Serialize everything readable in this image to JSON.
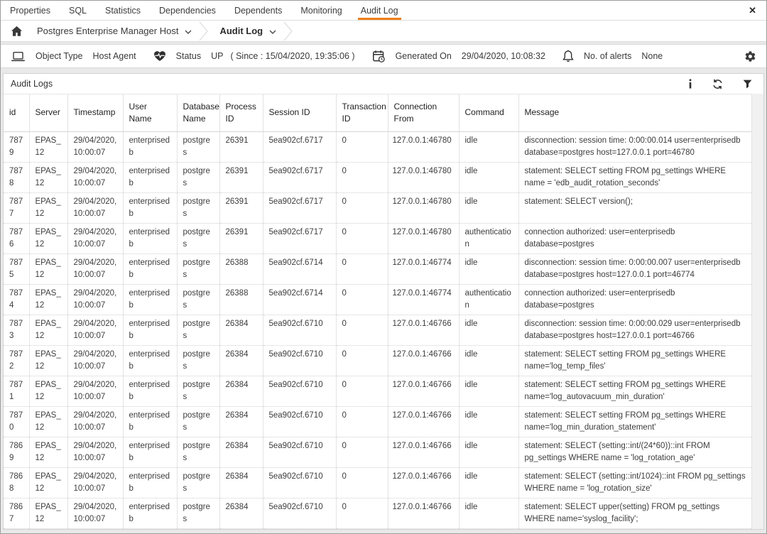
{
  "colors": {
    "accent_orange": "#ef7d1a"
  },
  "tabs": {
    "items": [
      {
        "label": "Properties",
        "active": false
      },
      {
        "label": "SQL",
        "active": false
      },
      {
        "label": "Statistics",
        "active": false
      },
      {
        "label": "Dependencies",
        "active": false
      },
      {
        "label": "Dependents",
        "active": false
      },
      {
        "label": "Monitoring",
        "active": false
      },
      {
        "label": "Audit Log",
        "active": true
      }
    ],
    "close_label": "✕"
  },
  "breadcrumb": {
    "items": [
      {
        "label": "Postgres Enterprise Manager Host"
      },
      {
        "label": "Audit Log"
      }
    ]
  },
  "status_bar": {
    "object_type_label": "Object Type",
    "object_type_value": "Host Agent",
    "status_label": "Status",
    "status_value": "UP",
    "status_since": "( Since : 15/04/2020, 19:35:06 )",
    "generated_label": "Generated On",
    "generated_value": "29/04/2020, 10:08:32",
    "alerts_label": "No. of alerts",
    "alerts_value": "None"
  },
  "panel": {
    "title": "Audit Logs"
  },
  "table": {
    "columns": [
      {
        "key": "id",
        "label": "id"
      },
      {
        "key": "server",
        "label": "Server"
      },
      {
        "key": "timestamp",
        "label": "Timestamp"
      },
      {
        "key": "user_name",
        "label": "User Name"
      },
      {
        "key": "database_name",
        "label": "Database Name"
      },
      {
        "key": "process_id",
        "label": "Process ID"
      },
      {
        "key": "session_id",
        "label": "Session ID"
      },
      {
        "key": "transaction_id",
        "label": "Transaction ID"
      },
      {
        "key": "connection_from",
        "label": "Connection From"
      },
      {
        "key": "command",
        "label": "Command"
      },
      {
        "key": "message",
        "label": "Message"
      }
    ],
    "rows": [
      {
        "id": "7879",
        "server": "EPAS_12",
        "timestamp": "29/04/2020, 10:00:07",
        "user_name": "enterprisedb",
        "database_name": "postgres",
        "process_id": "26391",
        "session_id": "5ea902cf.6717",
        "transaction_id": "0",
        "connection_from": "127.0.0.1:46780",
        "command": "idle",
        "message": "disconnection: session time: 0:00:00.014 user=enterprisedb database=postgres host=127.0.0.1 port=46780"
      },
      {
        "id": "7878",
        "server": "EPAS_12",
        "timestamp": "29/04/2020, 10:00:07",
        "user_name": "enterprisedb",
        "database_name": "postgres",
        "process_id": "26391",
        "session_id": "5ea902cf.6717",
        "transaction_id": "0",
        "connection_from": "127.0.0.1:46780",
        "command": "idle",
        "message": "statement: SELECT setting FROM pg_settings WHERE name = 'edb_audit_rotation_seconds'"
      },
      {
        "id": "7877",
        "server": "EPAS_12",
        "timestamp": "29/04/2020, 10:00:07",
        "user_name": "enterprisedb",
        "database_name": "postgres",
        "process_id": "26391",
        "session_id": "5ea902cf.6717",
        "transaction_id": "0",
        "connection_from": "127.0.0.1:46780",
        "command": "idle",
        "message": "statement: SELECT version();"
      },
      {
        "id": "7876",
        "server": "EPAS_12",
        "timestamp": "29/04/2020, 10:00:07",
        "user_name": "enterprisedb",
        "database_name": "postgres",
        "process_id": "26391",
        "session_id": "5ea902cf.6717",
        "transaction_id": "0",
        "connection_from": "127.0.0.1:46780",
        "command": "authentication",
        "message": "connection authorized: user=enterprisedb database=postgres"
      },
      {
        "id": "7875",
        "server": "EPAS_12",
        "timestamp": "29/04/2020, 10:00:07",
        "user_name": "enterprisedb",
        "database_name": "postgres",
        "process_id": "26388",
        "session_id": "5ea902cf.6714",
        "transaction_id": "0",
        "connection_from": "127.0.0.1:46774",
        "command": "idle",
        "message": "disconnection: session time: 0:00:00.007 user=enterprisedb database=postgres host=127.0.0.1 port=46774"
      },
      {
        "id": "7874",
        "server": "EPAS_12",
        "timestamp": "29/04/2020, 10:00:07",
        "user_name": "enterprisedb",
        "database_name": "postgres",
        "process_id": "26388",
        "session_id": "5ea902cf.6714",
        "transaction_id": "0",
        "connection_from": "127.0.0.1:46774",
        "command": "authentication",
        "message": "connection authorized: user=enterprisedb database=postgres"
      },
      {
        "id": "7873",
        "server": "EPAS_12",
        "timestamp": "29/04/2020, 10:00:07",
        "user_name": "enterprisedb",
        "database_name": "postgres",
        "process_id": "26384",
        "session_id": "5ea902cf.6710",
        "transaction_id": "0",
        "connection_from": "127.0.0.1:46766",
        "command": "idle",
        "message": "disconnection: session time: 0:00:00.029 user=enterprisedb database=postgres host=127.0.0.1 port=46766"
      },
      {
        "id": "7872",
        "server": "EPAS_12",
        "timestamp": "29/04/2020, 10:00:07",
        "user_name": "enterprisedb",
        "database_name": "postgres",
        "process_id": "26384",
        "session_id": "5ea902cf.6710",
        "transaction_id": "0",
        "connection_from": "127.0.0.1:46766",
        "command": "idle",
        "message": "statement: SELECT setting FROM pg_settings WHERE name='log_temp_files'"
      },
      {
        "id": "7871",
        "server": "EPAS_12",
        "timestamp": "29/04/2020, 10:00:07",
        "user_name": "enterprisedb",
        "database_name": "postgres",
        "process_id": "26384",
        "session_id": "5ea902cf.6710",
        "transaction_id": "0",
        "connection_from": "127.0.0.1:46766",
        "command": "idle",
        "message": "statement: SELECT setting FROM pg_settings WHERE name='log_autovacuum_min_duration'"
      },
      {
        "id": "7870",
        "server": "EPAS_12",
        "timestamp": "29/04/2020, 10:00:07",
        "user_name": "enterprisedb",
        "database_name": "postgres",
        "process_id": "26384",
        "session_id": "5ea902cf.6710",
        "transaction_id": "0",
        "connection_from": "127.0.0.1:46766",
        "command": "idle",
        "message": "statement: SELECT setting FROM pg_settings WHERE name='log_min_duration_statement'"
      },
      {
        "id": "7869",
        "server": "EPAS_12",
        "timestamp": "29/04/2020, 10:00:07",
        "user_name": "enterprisedb",
        "database_name": "postgres",
        "process_id": "26384",
        "session_id": "5ea902cf.6710",
        "transaction_id": "0",
        "connection_from": "127.0.0.1:46766",
        "command": "idle",
        "message": "statement: SELECT (setting::int/(24*60))::int FROM pg_settings WHERE name = 'log_rotation_age'"
      },
      {
        "id": "7868",
        "server": "EPAS_12",
        "timestamp": "29/04/2020, 10:00:07",
        "user_name": "enterprisedb",
        "database_name": "postgres",
        "process_id": "26384",
        "session_id": "5ea902cf.6710",
        "transaction_id": "0",
        "connection_from": "127.0.0.1:46766",
        "command": "idle",
        "message": "statement: SELECT (setting::int/1024)::int FROM pg_settings WHERE name = 'log_rotation_size'"
      },
      {
        "id": "7867",
        "server": "EPAS_12",
        "timestamp": "29/04/2020, 10:00:07",
        "user_name": "enterprisedb",
        "database_name": "postgres",
        "process_id": "26384",
        "session_id": "5ea902cf.6710",
        "transaction_id": "0",
        "connection_from": "127.0.0.1:46766",
        "command": "idle",
        "message": "statement: SELECT upper(setting) FROM pg_settings WHERE name='syslog_facility';"
      }
    ]
  }
}
